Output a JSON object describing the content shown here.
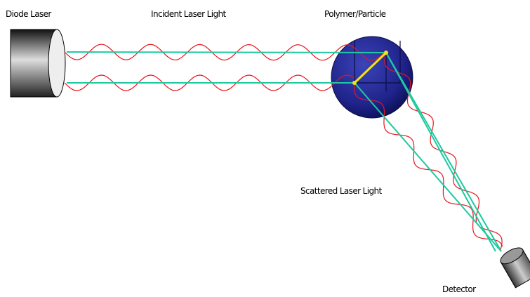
{
  "nodes": [
    {
      "label": "Diode Laser"
    },
    {
      "label": "Incident Laser Light"
    },
    {
      "label": "Polymer/Particle"
    },
    {
      "label": "Scattered Laser Light"
    },
    {
      "label": "Detector"
    }
  ]
}
